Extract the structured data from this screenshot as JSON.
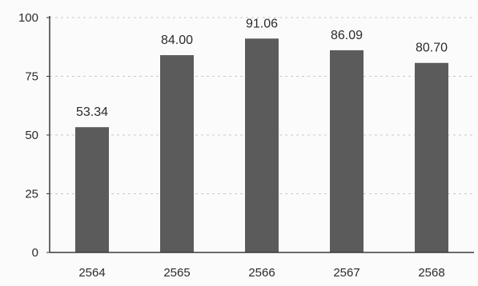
{
  "chart_data": {
    "type": "bar",
    "categories": [
      "2564",
      "2565",
      "2566",
      "2567",
      "2568"
    ],
    "values": [
      53.34,
      84.0,
      91.06,
      86.09,
      80.7
    ],
    "value_labels": [
      "53.34",
      "84.00",
      "91.06",
      "86.09",
      "80.70"
    ],
    "title": "",
    "xlabel": "",
    "ylabel": "",
    "ylim": [
      0,
      100
    ],
    "yticks": [
      0,
      25,
      50,
      75,
      100
    ],
    "ytick_labels": [
      "0",
      "25",
      "50",
      "75",
      "100"
    ],
    "grid": "horizontal-dashed",
    "legend": "none",
    "colors": {
      "bar": "#5b5b5b",
      "axis": "#3a3a3a",
      "grid": "#c8c8c8",
      "text": "#2b2b2b"
    }
  }
}
